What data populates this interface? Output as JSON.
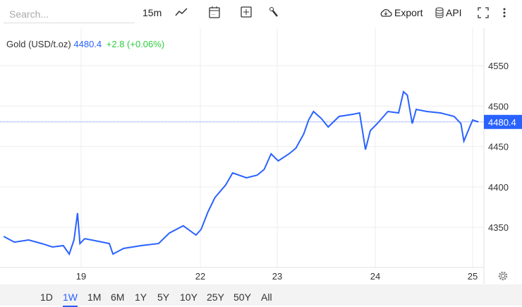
{
  "toolbar": {
    "search_placeholder": "Search...",
    "interval": "15m",
    "export": "Export",
    "api": "API"
  },
  "legend": {
    "symbol": "Gold (USD/t.oz)",
    "price": "4480.4",
    "change": "+2.8 (+0.06%)"
  },
  "ranges": [
    "1D",
    "1W",
    "1M",
    "6M",
    "1Y",
    "5Y",
    "10Y",
    "25Y",
    "50Y",
    "All"
  ],
  "active_range": "1W",
  "colors": {
    "line": "#2962ff",
    "change": "#2ecc40",
    "price_label_bg": "#2962ff"
  },
  "chart_data": {
    "type": "line",
    "title": "",
    "xlabel": "",
    "ylabel": "",
    "x_ticks": [
      {
        "value": 19,
        "label": "19"
      },
      {
        "value": 22,
        "label": "22"
      },
      {
        "value": 23,
        "label": "23"
      },
      {
        "value": 24,
        "label": "24"
      },
      {
        "value": 25,
        "label": "25"
      }
    ],
    "y_ticks": [
      4350,
      4400,
      4450,
      4500,
      4550
    ],
    "ylim": [
      4300,
      4590
    ],
    "grid": true,
    "last_price": 4480.4,
    "x": [
      18.35,
      18.44,
      18.56,
      18.67,
      18.76,
      18.85,
      18.9,
      18.94,
      18.97,
      18.99,
      19.09,
      19.44,
      19.71,
      19.8,
      20.07,
      20.51,
      20.95,
      21.22,
      21.57,
      21.89,
      22.01,
      22.1,
      22.19,
      22.33,
      22.42,
      22.6,
      22.74,
      22.83,
      22.92,
      23.01,
      23.12,
      23.19,
      23.27,
      23.32,
      23.37,
      23.45,
      23.52,
      23.63,
      23.77,
      23.84,
      23.9,
      23.95,
      24.02,
      24.13,
      24.24,
      24.29,
      24.33,
      24.38,
      24.42,
      24.53,
      24.67,
      24.81,
      24.88,
      24.91,
      25.0,
      25.06
    ],
    "y": [
      4338.8,
      4331.8,
      4334.5,
      4330,
      4325.7,
      4327.5,
      4317,
      4334.5,
      4367.7,
      4330,
      4336,
      4332.7,
      4330,
      4317,
      4324,
      4327.5,
      4330,
      4343,
      4352,
      4340.6,
      4347.6,
      4369.4,
      4386.9,
      4402.5,
      4417.4,
      4411.3,
      4414.7,
      4421.7,
      4440.9,
      4432.2,
      4440.9,
      4447.9,
      4465.4,
      4482.8,
      4493.3,
      4484.6,
      4474.1,
      4487.2,
      4489.8,
      4491.5,
      4446.2,
      4469.7,
      4478.4,
      4493.3,
      4491.5,
      4517.7,
      4513.4,
      4478.4,
      4495.9,
      4493.3,
      4491.5,
      4487.2,
      4478.4,
      4456.6,
      4482.8,
      4480.4
    ]
  }
}
